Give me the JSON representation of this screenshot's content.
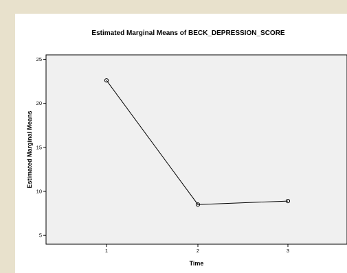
{
  "chart_data": {
    "type": "line",
    "title": "Estimated Marginal Means of BECK_DEPRESSION_SCORE",
    "xlabel": "Time",
    "ylabel": "Estimated Marginal Means",
    "categories": [
      "1",
      "2",
      "3"
    ],
    "series": [
      {
        "values": [
          22.6,
          8.5,
          8.9
        ]
      }
    ],
    "ylim": [
      4,
      25.5
    ],
    "yticks": [
      5,
      10,
      15,
      20,
      25
    ],
    "grid": false,
    "colors": {
      "plot_background": "#f0f0f0",
      "line": "#000000",
      "page_background": "#e8e1cc"
    }
  }
}
